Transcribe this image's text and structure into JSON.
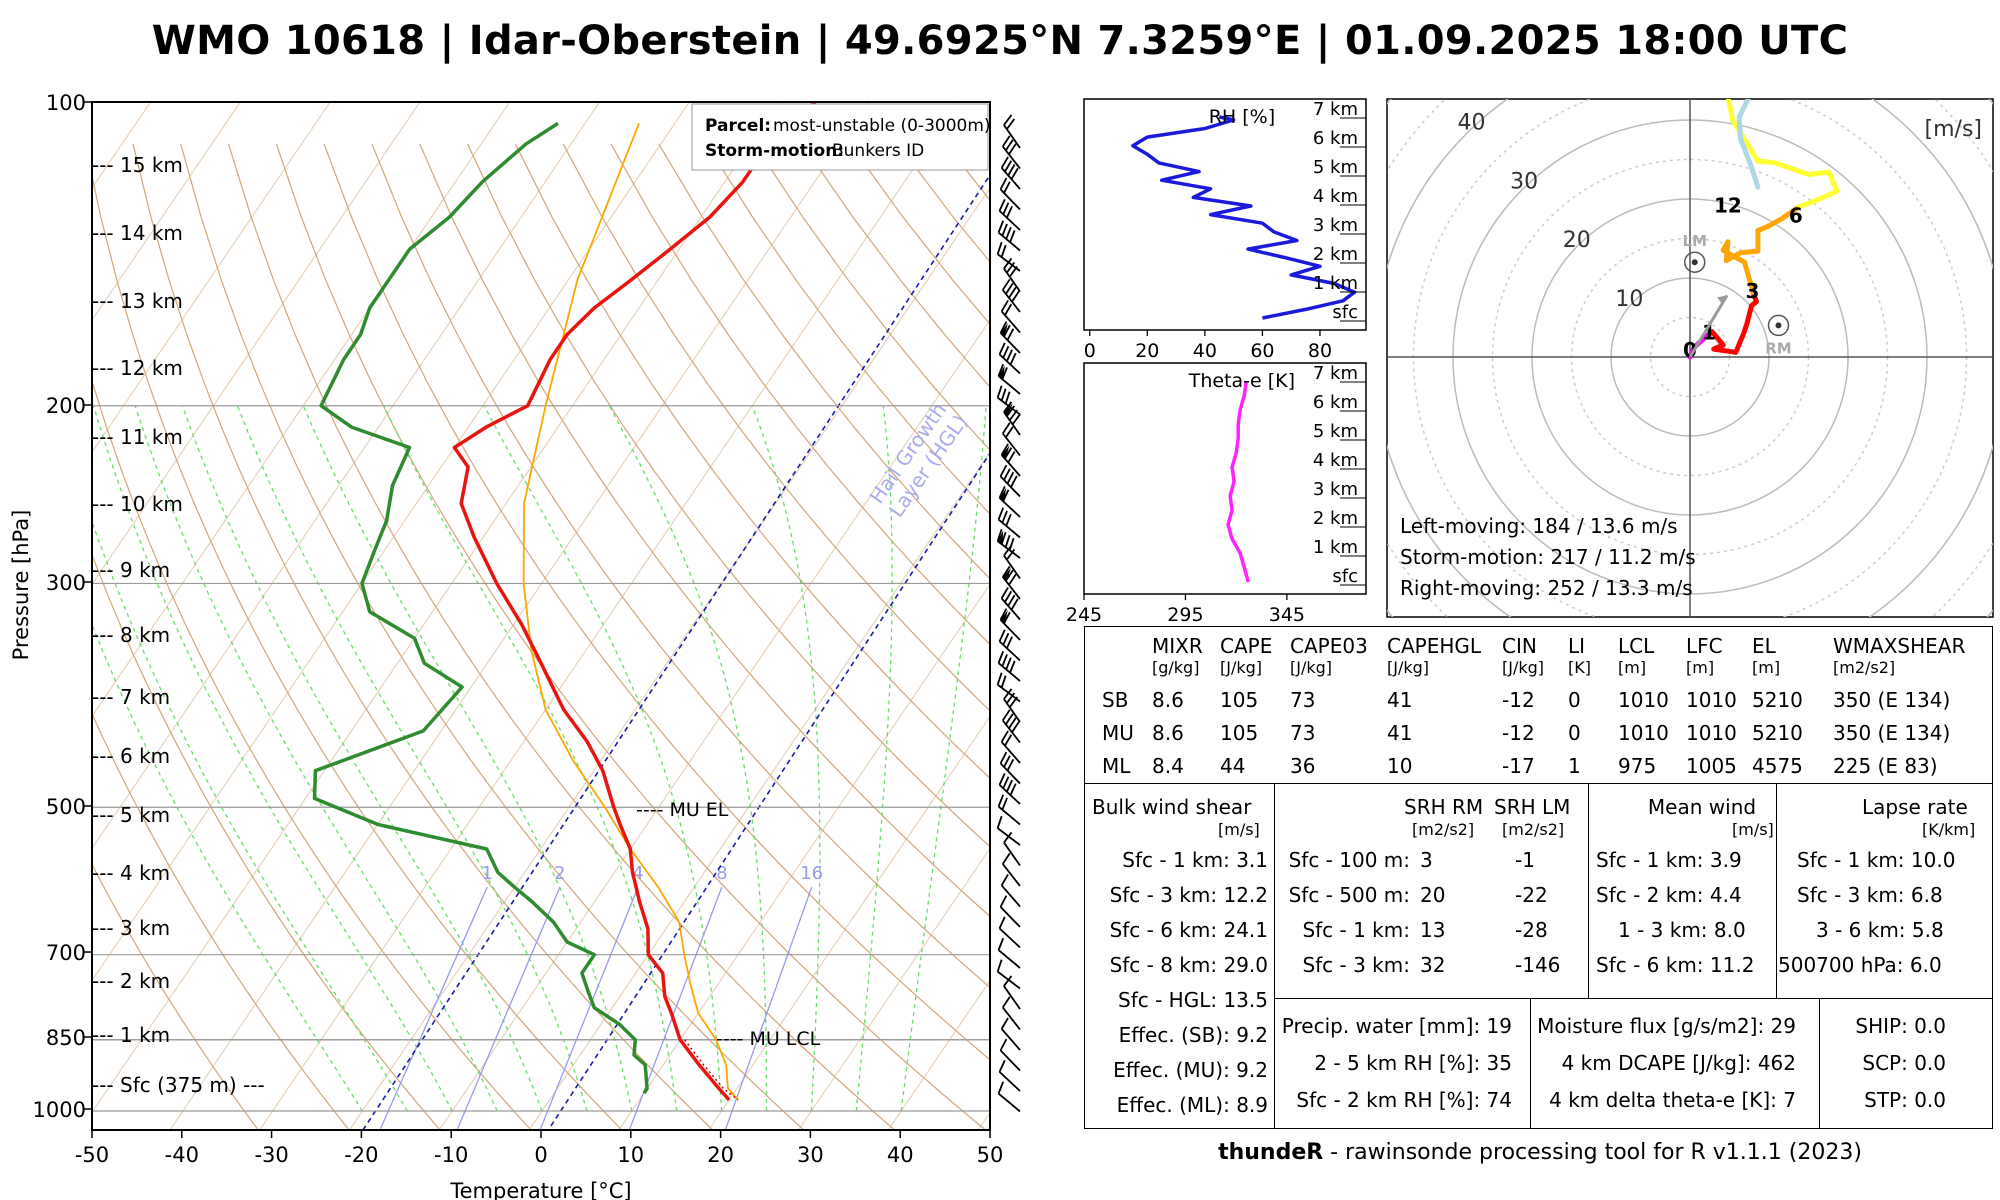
{
  "title": "WMO 10618 | Idar-Oberstein | 49.6925°N 7.3259°E | 01.09.2025 18:00 UTC",
  "footer": {
    "brand": "thundeR",
    "text": " - rawinsonde processing tool for R v1.1.1 (2023)"
  },
  "chart_data": [
    {
      "type": "line",
      "subtype": "skew-T log-p",
      "xlabel": "Temperature [°C]",
      "ylabel": "Pressure [hPa]",
      "x_ticks": [
        -50,
        -40,
        -30,
        -20,
        -10,
        0,
        10,
        20,
        30,
        40,
        50
      ],
      "y_ticks": [
        100,
        200,
        300,
        500,
        700,
        850,
        1000
      ],
      "height_labels": [
        "--- 15 km",
        "--- 14 km",
        "--- 13 km",
        "--- 12 km",
        "--- 11 km",
        "--- 10 km",
        "--- 9 km",
        "--- 8 km",
        "--- 7 km",
        "--- 6 km",
        "--- 5 km",
        "--- 4 km",
        "--- 3 km",
        "--- 2 km",
        "--- 1 km",
        "--- Sfc (375 m) ---"
      ],
      "mixing_ratio_labels": [
        "1",
        "2",
        "4",
        "8",
        "16"
      ],
      "annotations": {
        "mu_el": "---- MU EL",
        "mu_lcl": "---- MU LCL",
        "hgl": "Hail Growth\nLayer (HGL)"
      },
      "legend": {
        "parcel_key": "Parcel:",
        "parcel_val": "most-unstable (0-3000m)",
        "storm_key": "Storm-motion:",
        "storm_val": "Bunkers ID"
      },
      "series": [
        {
          "role": "temperature",
          "color": "#e8140f",
          "x": [
            0,
            0,
            0
          ]
        },
        {
          "role": "dewpoint",
          "color": "#2e8b2e"
        },
        {
          "role": "parcel",
          "color": "#ffa500"
        }
      ],
      "temperature_profile": [
        [
          100,
          -46
        ],
        [
          110,
          -48
        ],
        [
          120,
          -48
        ],
        [
          130,
          -49
        ],
        [
          140,
          -51
        ],
        [
          150,
          -53
        ],
        [
          160,
          -55
        ],
        [
          170,
          -56
        ],
        [
          180,
          -56
        ],
        [
          200,
          -55
        ],
        [
          210,
          -58
        ],
        [
          220,
          -60
        ],
        [
          230,
          -57
        ],
        [
          250,
          -55
        ],
        [
          270,
          -51
        ],
        [
          300,
          -45
        ],
        [
          330,
          -39
        ],
        [
          360,
          -34
        ],
        [
          400,
          -28
        ],
        [
          430,
          -23
        ],
        [
          460,
          -19
        ],
        [
          500,
          -15
        ],
        [
          520,
          -13
        ],
        [
          550,
          -10
        ],
        [
          580,
          -8
        ],
        [
          620,
          -5
        ],
        [
          660,
          -2
        ],
        [
          700,
          0
        ],
        [
          730,
          3
        ],
        [
          770,
          5
        ],
        [
          800,
          7
        ],
        [
          850,
          10
        ],
        [
          900,
          14
        ],
        [
          950,
          18
        ],
        [
          975,
          20
        ]
      ],
      "dewpoint_profile": [
        [
          105,
          -73
        ],
        [
          110,
          -75
        ],
        [
          120,
          -77
        ],
        [
          130,
          -78
        ],
        [
          140,
          -80
        ],
        [
          150,
          -80
        ],
        [
          160,
          -80
        ],
        [
          170,
          -79
        ],
        [
          180,
          -79
        ],
        [
          200,
          -78
        ],
        [
          210,
          -73
        ],
        [
          220,
          -65
        ],
        [
          240,
          -64
        ],
        [
          260,
          -62
        ],
        [
          280,
          -61
        ],
        [
          300,
          -60
        ],
        [
          320,
          -57
        ],
        [
          340,
          -50
        ],
        [
          360,
          -47
        ],
        [
          380,
          -41
        ],
        [
          420,
          -42
        ],
        [
          460,
          -51
        ],
        [
          490,
          -49
        ],
        [
          520,
          -40
        ],
        [
          550,
          -26
        ],
        [
          580,
          -23
        ],
        [
          600,
          -20
        ],
        [
          620,
          -17
        ],
        [
          650,
          -13
        ],
        [
          680,
          -10
        ],
        [
          700,
          -6
        ],
        [
          730,
          -6
        ],
        [
          760,
          -4
        ],
        [
          790,
          -2
        ],
        [
          820,
          2
        ],
        [
          850,
          5
        ],
        [
          880,
          6
        ],
        [
          900,
          8
        ],
        [
          950,
          10
        ],
        [
          960,
          10
        ]
      ],
      "parcel_profile": [
        [
          105,
          -64
        ],
        [
          150,
          -59
        ],
        [
          200,
          -53
        ],
        [
          250,
          -48
        ],
        [
          300,
          -42
        ],
        [
          350,
          -36
        ],
        [
          400,
          -30
        ],
        [
          450,
          -23
        ],
        [
          500,
          -16
        ],
        [
          550,
          -10
        ],
        [
          600,
          -4
        ],
        [
          650,
          1
        ],
        [
          700,
          4
        ],
        [
          750,
          7
        ],
        [
          800,
          10
        ],
        [
          850,
          14
        ],
        [
          900,
          17
        ],
        [
          950,
          19
        ],
        [
          975,
          21
        ]
      ]
    },
    {
      "type": "line",
      "title": "RH [%]",
      "x_ticks": [
        0,
        20,
        40,
        60,
        80
      ],
      "height_labels": [
        "7 km",
        "6 km",
        "5 km",
        "4 km",
        "3 km",
        "2 km",
        "1 km",
        "sfc"
      ],
      "height_km": [
        0,
        0.3,
        0.6,
        0.9,
        1.2,
        1.5,
        1.8,
        2.1,
        2.4,
        2.7,
        3,
        3.3,
        3.6,
        3.9,
        4.2,
        4.5,
        4.8,
        5.1,
        5.4,
        5.7,
        6,
        6.3,
        6.6,
        6.9,
        7
      ],
      "values": [
        60,
        75,
        88,
        92,
        85,
        70,
        80,
        68,
        55,
        72,
        64,
        60,
        42,
        56,
        36,
        42,
        25,
        38,
        24,
        20,
        15,
        20,
        40,
        50,
        45
      ]
    },
    {
      "type": "line",
      "title": "Theta-e [K]",
      "x_ticks": [
        245,
        295,
        345
      ],
      "height_labels": [
        "7 km",
        "6 km",
        "5 km",
        "4 km",
        "3 km",
        "2 km",
        "1 km",
        "sfc"
      ],
      "height_km": [
        0,
        0.5,
        1,
        1.5,
        2,
        2.5,
        3,
        3.5,
        4,
        4.5,
        5,
        5.5,
        6,
        6.5,
        7
      ],
      "values": [
        326,
        324,
        322,
        318,
        316,
        318,
        317,
        319,
        318,
        320,
        321,
        321,
        322,
        324,
        325
      ]
    },
    {
      "type": "line",
      "subtype": "hodograph",
      "unit": "[m/s]",
      "rings": [
        "10",
        "20",
        "30",
        "40"
      ],
      "series": [
        {
          "name": "0-1 km",
          "color": "#ff00ff",
          "u": [
            0,
            0.5,
            1.6,
            2.8
          ],
          "v": [
            0,
            1.2,
            2.2,
            3.2
          ]
        },
        {
          "name": "1-3 km",
          "color": "#ff0000",
          "u": [
            2.8,
            4.2,
            3.0,
            5.8,
            6.8,
            7.2,
            7.8,
            8.4,
            8.0
          ],
          "v": [
            3.2,
            1.5,
            1.0,
            0.6,
            3.0,
            4.2,
            6.5,
            7.0,
            8.2
          ]
        },
        {
          "name": "3-6 km",
          "color": "#ffa500",
          "u": [
            8.0,
            6.9,
            4.2,
            4.8,
            4.6,
            6.4,
            8.6,
            8.6,
            9.8,
            11.6,
            13.8
          ],
          "v": [
            8.2,
            12.0,
            13.5,
            14.6,
            12.2,
            13.2,
            13.4,
            16.0,
            16.5,
            17.5,
            19.0
          ]
        },
        {
          "name": "6-12 km",
          "color": "#ffff33",
          "u": [
            13.8,
            16.4,
            18.6,
            17.6,
            15.0,
            10.7,
            8.6
          ],
          "v": [
            19.0,
            20.0,
            21.0,
            23.4,
            23.1,
            24.6,
            24.8
          ]
        },
        {
          "name": "12+ km",
          "color": "#ffff33",
          "u": [
            8.6,
            5.4,
            4.4,
            5.4,
            8.6
          ],
          "v": [
            24.8,
            30.0,
            35.0,
            39.0,
            38.0
          ]
        },
        {
          "name": "top",
          "color": "#add8e6",
          "u": [
            8.6,
            7.8,
            6.4,
            6.2,
            8.0,
            10.6,
            9.6
          ],
          "v": [
            21.5,
            24.0,
            27.6,
            30.3,
            34.0,
            36.4,
            38.7
          ]
        }
      ],
      "markers": [
        "0",
        "1",
        "3",
        "6",
        "12"
      ],
      "lm": {
        "label": "LM",
        "u": 0.6,
        "v": 12.0
      },
      "rm": {
        "label": "RM",
        "u": 11.2,
        "v": 4.0
      },
      "mean_vector": {
        "u": 4.7,
        "v": 7.8
      },
      "texts": [
        "Left-moving: 184 / 13.6 m/s",
        "Storm-motion: 217 / 11.2 m/s",
        "Right-moving: 252 / 13.3 m/s"
      ]
    }
  ],
  "parcel_table": {
    "headers": [
      "MIXR",
      "CAPE",
      "CAPE03",
      "CAPEHGL",
      "CIN",
      "LI",
      "LCL",
      "LFC",
      "EL",
      "WMAXSHEAR"
    ],
    "units": [
      "[g/kg]",
      "[J/kg]",
      "[J/kg]",
      "[J/kg]",
      "[J/kg]",
      "[K]",
      "[m]",
      "[m]",
      "[m]",
      "[m2/s2]"
    ],
    "rows": [
      {
        "label": "SB",
        "cells": [
          "8.6",
          "105",
          "73",
          "41",
          "-12",
          "0",
          "1010",
          "1010",
          "5210",
          "350   (E 134)"
        ]
      },
      {
        "label": "MU",
        "cells": [
          "8.6",
          "105",
          "73",
          "41",
          "-12",
          "0",
          "1010",
          "1010",
          "5210",
          "350   (E 134)"
        ]
      },
      {
        "label": "ML",
        "cells": [
          "8.4",
          "44",
          "36",
          "10",
          "-17",
          "1",
          "975",
          "1005",
          "4575",
          "225   (E 83)"
        ]
      }
    ]
  },
  "shear": {
    "title": "Bulk wind shear",
    "unit": "[m/s]",
    "rows": [
      "Sfc - 1 km: 3.1",
      "Sfc - 3 km: 12.2",
      "Sfc - 6 km: 24.1",
      "Sfc - 8 km: 29.0",
      "Sfc - HGL: 13.5",
      "Effec. (SB): 9.2",
      "Effec. (MU): 9.2",
      "Effec. (ML): 8.9"
    ]
  },
  "srh": {
    "h_rm": "SRH RM",
    "h_lm": "SRH LM",
    "u_rm": "[m2/s2]",
    "u_lm": "[m2/s2]",
    "rows": [
      {
        "label": "Sfc - 100 m:",
        "rm": "3",
        "lm": "-1"
      },
      {
        "label": "Sfc - 500 m:",
        "rm": "20",
        "lm": "-22"
      },
      {
        "label": "Sfc - 1 km:",
        "rm": "13",
        "lm": "-28"
      },
      {
        "label": "Sfc - 3 km:",
        "rm": "32",
        "lm": "-146"
      }
    ]
  },
  "mean_wind": {
    "title": "Mean wind",
    "unit": "[m/s]",
    "rows": [
      "Sfc - 1 km: 3.9",
      "Sfc - 2 km: 4.4",
      "1 - 3 km: 8.0",
      "Sfc - 6 km: 11.2"
    ]
  },
  "lapse": {
    "title": "Lapse rate",
    "unit": "[K/km]",
    "rows": [
      "Sfc - 1 km: 10.0",
      "Sfc - 3 km: 6.8",
      "3 - 6 km: 5.8",
      "500700 hPa: 6.0"
    ]
  },
  "moisture": {
    "rows": [
      "Precip. water [mm]: 19",
      "2 - 5 km RH [%]: 35",
      "Sfc - 2 km RH [%]: 74"
    ]
  },
  "flux": {
    "rows": [
      "Moisture flux [g/s/m2]: 29",
      "4 km DCAPE [J/kg]: 462",
      "4 km delta theta-e [K]: 7"
    ]
  },
  "composite": {
    "rows": [
      "SHIP: 0.0",
      "SCP: 0.0",
      "STP: 0.0"
    ]
  },
  "colors": {
    "dry_adiabat": "#d2a679",
    "moist_adiabat": "#66dd66",
    "mixing_ratio": "#9999ee",
    "hgl": "#1a1aaa"
  }
}
